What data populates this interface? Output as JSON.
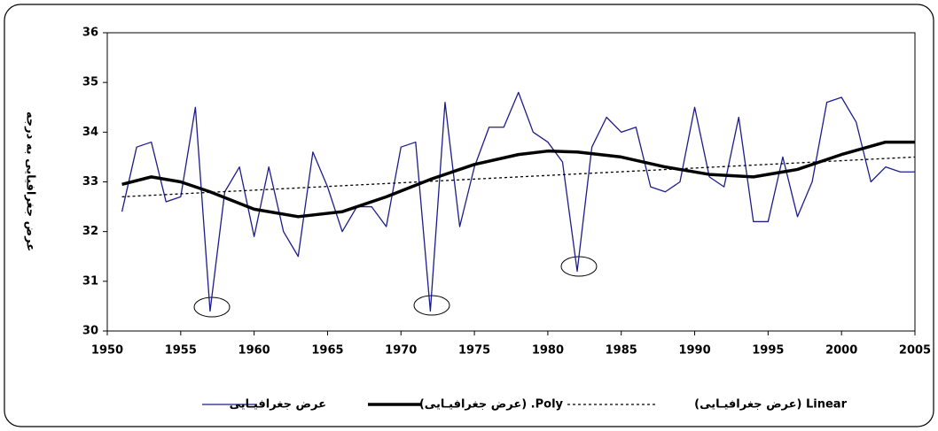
{
  "chart_data": {
    "type": "line",
    "ylabel": "عرض جغرافیایی به درجه",
    "xlim": [
      1950,
      2005
    ],
    "xticks": [
      1950,
      1955,
      1960,
      1965,
      1970,
      1975,
      1980,
      1985,
      1990,
      1995,
      2000,
      2005
    ],
    "ylim": [
      30,
      36
    ],
    "yticks": [
      30,
      31,
      32,
      33,
      34,
      35,
      36
    ],
    "legend": "bottom",
    "series": [
      {
        "name": "عرض جغرافیـایی",
        "color": "#1c1c8e",
        "style": "solid",
        "x": [
          1951,
          1952,
          1953,
          1954,
          1955,
          1956,
          1957,
          1958,
          1959,
          1960,
          1961,
          1962,
          1963,
          1964,
          1965,
          1966,
          1967,
          1968,
          1969,
          1970,
          1971,
          1972,
          1973,
          1974,
          1975,
          1976,
          1977,
          1978,
          1979,
          1980,
          1981,
          1982,
          1983,
          1984,
          1985,
          1986,
          1987,
          1988,
          1989,
          1990,
          1991,
          1992,
          1993,
          1994,
          1995,
          1996,
          1997,
          1998,
          1999,
          2000,
          2001,
          2002,
          2003,
          2004,
          2005
        ],
        "values": [
          32.4,
          33.7,
          33.8,
          32.6,
          32.7,
          34.5,
          30.4,
          32.8,
          33.3,
          31.9,
          33.3,
          32.0,
          31.5,
          33.6,
          32.9,
          32.0,
          32.5,
          32.5,
          32.1,
          33.7,
          33.8,
          30.4,
          34.6,
          32.1,
          33.3,
          34.1,
          34.1,
          34.8,
          34.0,
          33.8,
          33.4,
          31.2,
          33.7,
          34.3,
          34.0,
          34.1,
          32.9,
          32.8,
          33.0,
          34.5,
          33.1,
          32.9,
          34.3,
          32.2,
          32.2,
          33.5,
          32.3,
          33.0,
          34.6,
          34.7,
          34.2,
          33.0,
          33.3,
          33.2,
          33.2
        ]
      },
      {
        "name": "Poly. (عرض جغرافیـایی)",
        "color": "#000000",
        "style": "thick",
        "x": [
          1951,
          1953,
          1955,
          1957,
          1960,
          1963,
          1966,
          1969,
          1972,
          1975,
          1978,
          1980,
          1982,
          1985,
          1988,
          1991,
          1994,
          1997,
          2000,
          2003,
          2005
        ],
        "values": [
          32.95,
          33.1,
          33.0,
          32.8,
          32.45,
          32.3,
          32.4,
          32.7,
          33.05,
          33.35,
          33.55,
          33.62,
          33.6,
          33.5,
          33.3,
          33.15,
          33.1,
          33.25,
          33.55,
          33.8,
          33.8
        ]
      },
      {
        "name": "Linear (عرض جغرافیـایی)",
        "color": "#000000",
        "style": "dotted",
        "x": [
          1951,
          2005
        ],
        "values": [
          32.7,
          33.5
        ]
      }
    ]
  }
}
